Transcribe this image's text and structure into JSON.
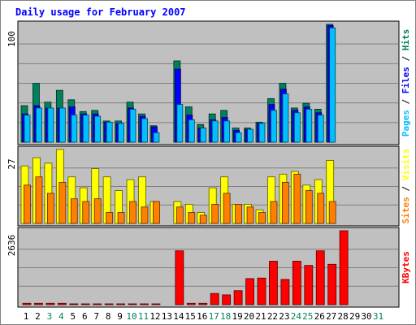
{
  "chart_data": {
    "type": "bar",
    "title": "Daily usage for February 2007",
    "colors": {
      "hits": "#00805c",
      "files": "#0000ff",
      "pages": "#00c0ff",
      "visits": "#ffff00",
      "sites": "#ff8000",
      "kbytes": "#ff0000",
      "title": "#0000ff",
      "weekend_label": "#00805c",
      "panel_bg": "#c0c0c0",
      "gridline": "#808080"
    },
    "days": [
      "1",
      "2",
      "3",
      "4",
      "5",
      "6",
      "7",
      "8",
      "9",
      "10",
      "11",
      "12",
      "13",
      "14",
      "15",
      "16",
      "17",
      "18",
      "19",
      "20",
      "21",
      "22",
      "23",
      "24",
      "25",
      "26",
      "27",
      "28",
      "29",
      "30",
      "31"
    ],
    "weekend_days": [
      "3",
      "4",
      "10",
      "11",
      "17",
      "18",
      "24",
      "25",
      "31"
    ],
    "panels": [
      {
        "id": "hits-files-pages",
        "max_label": "100",
        "ylim": [
          0,
          100
        ],
        "legend": [
          {
            "key": "pages",
            "text": "Pages"
          },
          {
            "key": "sep",
            "text": " / "
          },
          {
            "key": "files",
            "text": "Files"
          },
          {
            "key": "sep",
            "text": " / "
          },
          {
            "key": "hits",
            "text": "Hits"
          }
        ],
        "series": [
          {
            "name": "Hits",
            "color_key": "hits",
            "values": [
              31,
              50,
              34,
              44,
              36,
              26,
              27,
              18,
              18,
              34,
              24,
              14,
              0,
              69,
              30,
              15,
              24,
              27,
              12,
              12,
              17,
              37,
              50,
              29,
              33,
              28,
              100,
              0,
              0,
              0,
              0
            ]
          },
          {
            "name": "Files",
            "color_key": "files",
            "values": [
              24,
              31,
              29,
              29,
              30,
              24,
              24,
              17,
              16,
              29,
              22,
              13,
              0,
              62,
              23,
              12,
              19,
              21,
              10,
              11,
              16,
              32,
              45,
              27,
              30,
              25,
              99,
              0,
              0,
              0,
              0
            ]
          },
          {
            "name": "Pages",
            "color_key": "pages",
            "values": [
              23,
              29,
              29,
              29,
              23,
              23,
              22,
              17,
              16,
              28,
              20,
              8,
              0,
              32,
              19,
              12,
              18,
              18,
              8,
              11,
              16,
              27,
              41,
              25,
              28,
              23,
              97,
              0,
              0,
              0,
              0
            ]
          }
        ]
      },
      {
        "id": "visits-sites",
        "max_label": "27",
        "ylim": [
          0,
          27
        ],
        "legend": [
          {
            "key": "sites",
            "text": "Sites"
          },
          {
            "key": "sep",
            "text": " / "
          },
          {
            "key": "visits",
            "text": "Visits"
          }
        ],
        "series": [
          {
            "name": "Visits",
            "color_key": "visits",
            "values": [
              21,
              24,
              22,
              27,
              17,
              13,
              20,
              17,
              12,
              16,
              17,
              8,
              0,
              8,
              7,
              4,
              13,
              17,
              7,
              7,
              5,
              17,
              18,
              19,
              14,
              16,
              23,
              0,
              0,
              0,
              0
            ]
          },
          {
            "name": "Sites",
            "color_key": "sites",
            "values": [
              14,
              17,
              11,
              15,
              9,
              8,
              9,
              4,
              4,
              8,
              6,
              8,
              0,
              6,
              4,
              3,
              7,
              11,
              7,
              6,
              4,
              8,
              15,
              18,
              12,
              11,
              8,
              0,
              0,
              0,
              0
            ]
          }
        ]
      },
      {
        "id": "kbytes",
        "max_label": "2636",
        "ylim": [
          0,
          2636
        ],
        "legend": [
          {
            "key": "kbytes",
            "text": "KBytes"
          }
        ],
        "series": [
          {
            "name": "KBytes",
            "color_key": "kbytes",
            "values": [
              50,
              50,
              50,
              50,
              30,
              30,
              30,
              30,
              30,
              30,
              30,
              30,
              0,
              1920,
              50,
              50,
              400,
              350,
              500,
              930,
              950,
              1550,
              900,
              1550,
              1400,
              1920,
              1440,
              2636,
              0,
              0,
              0
            ]
          }
        ]
      }
    ]
  }
}
